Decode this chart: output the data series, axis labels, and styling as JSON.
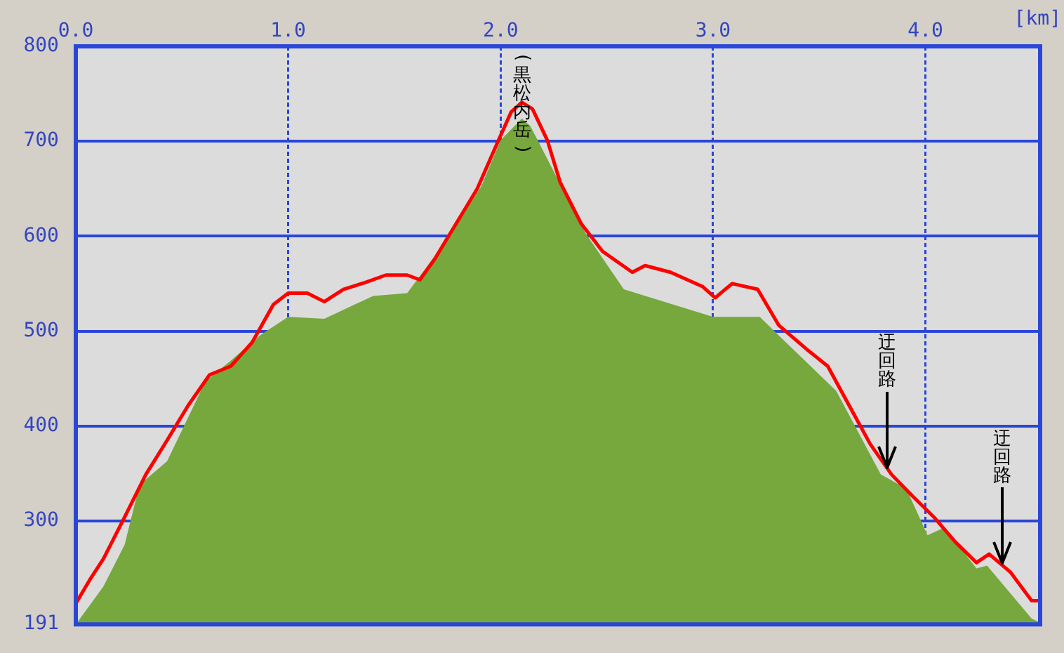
{
  "chart_data": {
    "type": "area",
    "xlabel": "[km]",
    "xlim": [
      0,
      4.54
    ],
    "ylim": [
      191,
      800
    ],
    "xticks": [
      {
        "value": 0,
        "label": "0.0"
      },
      {
        "value": 1,
        "label": "1.0"
      },
      {
        "value": 2,
        "label": "2.0"
      },
      {
        "value": 3,
        "label": "3.0"
      },
      {
        "value": 4,
        "label": "4.0"
      }
    ],
    "yticks": [
      191,
      300,
      400,
      500,
      600,
      700,
      800
    ],
    "grid": true,
    "legend": false,
    "series": [
      {
        "color": "#76a83e",
        "x": [
          0,
          0.13,
          0.23,
          0.3,
          0.43,
          0.61,
          0.73,
          0.87,
          1.0,
          1.17,
          1.4,
          1.56,
          1.74,
          1.91,
          2.0,
          2.1,
          2.14,
          2.4,
          2.58,
          3.0,
          3.22,
          3.33,
          3.58,
          3.79,
          3.91,
          4.01,
          4.09,
          4.24,
          4.29,
          4.5,
          4.54
        ],
        "values": [
          191,
          231,
          275,
          338,
          363,
          447,
          469,
          496,
          515,
          513,
          537,
          540,
          594,
          653,
          701,
          724,
          716,
          603,
          544,
          515,
          515,
          491,
          437,
          349,
          334,
          285,
          293,
          250,
          253,
          197,
          193
        ]
      },
      {
        "type": "line",
        "color": "#ff0000",
        "x": [
          0,
          0.066,
          0.13,
          0.23,
          0.33,
          0.43,
          0.53,
          0.63,
          0.73,
          0.83,
          0.93,
          1.0,
          1.09,
          1.17,
          1.26,
          1.36,
          1.46,
          1.56,
          1.62,
          1.69,
          1.79,
          1.89,
          1.99,
          2.05,
          2.1,
          2.15,
          2.22,
          2.28,
          2.38,
          2.48,
          2.62,
          2.68,
          2.8,
          2.95,
          3.01,
          3.09,
          3.21,
          3.31,
          3.44,
          3.54,
          3.64,
          3.74,
          3.84,
          3.94,
          4.04,
          4.14,
          4.24,
          4.3,
          4.4,
          4.5,
          4.54
        ],
        "values": [
          213,
          238,
          260,
          304,
          349,
          385,
          422,
          454,
          463,
          488,
          528,
          540,
          540,
          531,
          544,
          551,
          559,
          559,
          554,
          576,
          613,
          650,
          701,
          731,
          741,
          734,
          701,
          657,
          613,
          584,
          562,
          569,
          562,
          547,
          535,
          550,
          544,
          506,
          481,
          463,
          422,
          381,
          349,
          326,
          304,
          278,
          256,
          265,
          246,
          216,
          216
        ]
      }
    ],
    "annotations": [
      {
        "text": "(黒松内岳)",
        "x": 2.1,
        "y": 741
      },
      {
        "text": "迂回路",
        "x": 3.82,
        "y": 355
      },
      {
        "text": "迂回路",
        "x": 4.36,
        "y": 254
      }
    ]
  }
}
